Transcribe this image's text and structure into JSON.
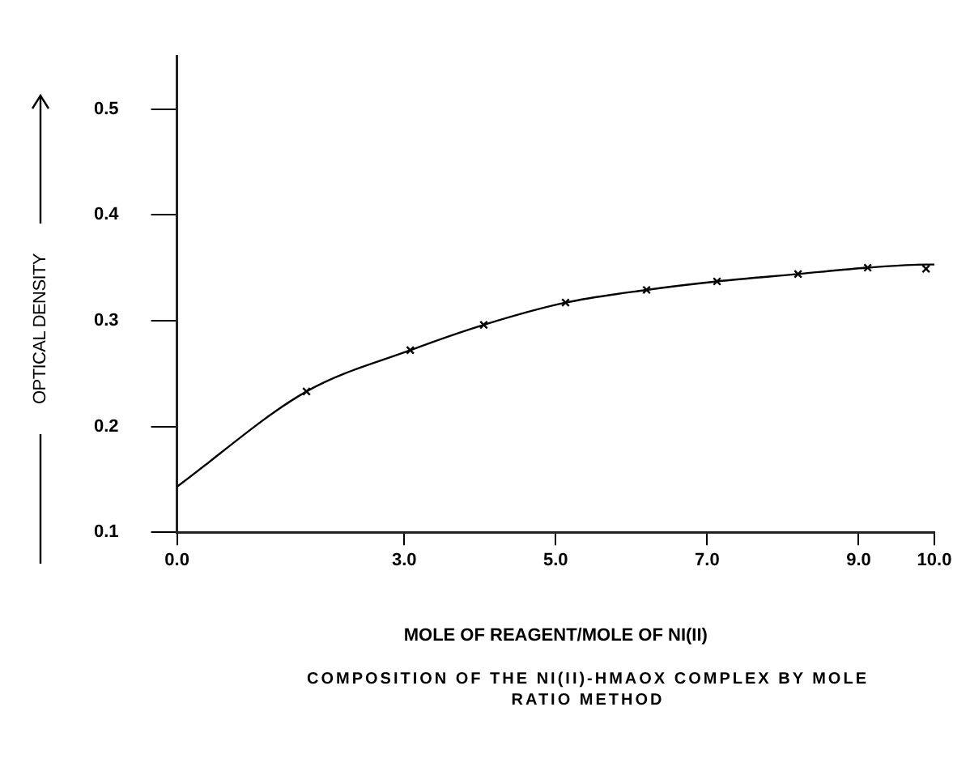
{
  "chart_data": {
    "type": "line",
    "xlabel": "MOLE OF REAGENT/MOLE OF NI(II)",
    "ylabel": "OPTICAL DENSITY",
    "annotations": [
      "COMPOSITION OF THE NI(II)-HMAOX COMPLEX BY MOLE RATIO METHOD"
    ],
    "xlim": [
      0,
      10
    ],
    "xticks": [
      {
        "value": 0,
        "label": "0.0"
      },
      {
        "value": 3,
        "label": "3.0"
      },
      {
        "value": 5,
        "label": "5.0"
      },
      {
        "value": 7,
        "label": "7.0"
      },
      {
        "value": 9,
        "label": "9.0"
      },
      {
        "value": 10,
        "label": "10.0"
      }
    ],
    "ylim": [
      0.1,
      0.55
    ],
    "yticks": [
      0.1,
      0.2,
      0.3,
      0.4,
      0.5
    ],
    "grid": false,
    "legend": false,
    "series": [
      {
        "type": "line",
        "color": "#000000",
        "marker": "none",
        "x": [
          0,
          1.71,
          3.08,
          4.05,
          5.13,
          6.2,
          7.13,
          8.2,
          9.12,
          9.89,
          10
        ],
        "values": [
          0.143,
          0.233,
          0.272,
          0.296,
          0.317,
          0.329,
          0.337,
          0.344,
          0.35,
          0.353,
          0.353
        ]
      },
      {
        "type": "scatter",
        "color": "#000000",
        "marker": "cross",
        "x": [
          1.71,
          3.08,
          4.05,
          5.13,
          6.2,
          7.13,
          8.2,
          9.12,
          9.89
        ],
        "values": [
          0.233,
          0.272,
          0.296,
          0.317,
          0.329,
          0.337,
          0.344,
          0.35,
          0.349
        ]
      }
    ]
  }
}
